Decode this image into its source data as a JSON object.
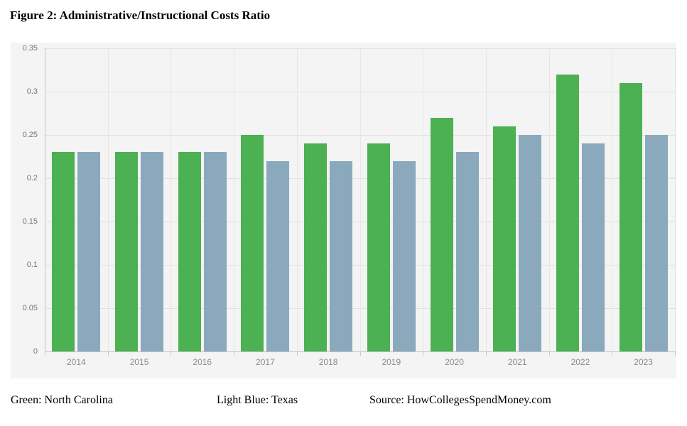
{
  "chart_data": {
    "type": "bar",
    "title": "Figure 2: Administrative/Instructional Costs Ratio",
    "categories": [
      "2014",
      "2015",
      "2016",
      "2017",
      "2018",
      "2019",
      "2020",
      "2021",
      "2022",
      "2023"
    ],
    "series": [
      {
        "name": "North Carolina",
        "color": "#4bb152",
        "values": [
          0.23,
          0.23,
          0.23,
          0.25,
          0.24,
          0.24,
          0.27,
          0.26,
          0.32,
          0.31
        ]
      },
      {
        "name": "Texas",
        "color": "#8aa9bc",
        "values": [
          0.23,
          0.23,
          0.23,
          0.22,
          0.22,
          0.22,
          0.23,
          0.25,
          0.24,
          0.25
        ]
      }
    ],
    "xlabel": "",
    "ylabel": "",
    "ylim": [
      0,
      0.35
    ],
    "yticks": [
      0,
      0.05,
      0.1,
      0.15,
      0.2,
      0.25,
      0.3,
      0.35
    ],
    "ytick_labels": [
      "0",
      "0.05",
      "0.1",
      "0.15",
      "0.2",
      "0.25",
      "0.3",
      "0.35"
    ],
    "grid": true,
    "legend_position": "none",
    "plot_background": "#f4f4f4"
  },
  "footer": {
    "left": "Green: North Carolina",
    "center": "Light Blue: Texas",
    "right": "Source: HowCollegesSpendMoney.com"
  }
}
